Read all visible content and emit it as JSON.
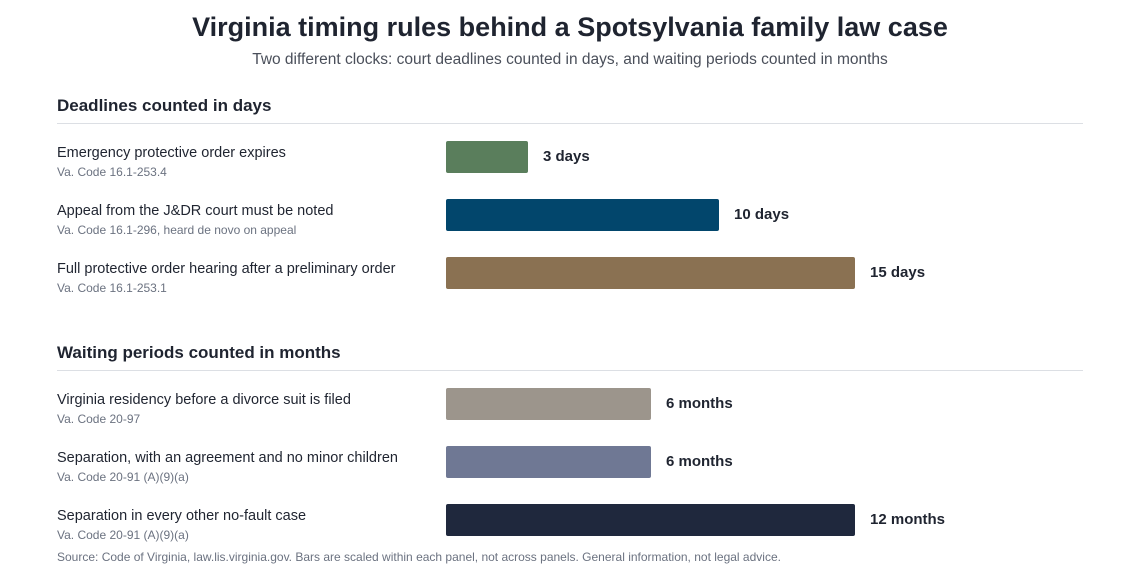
{
  "title": "Virginia timing rules behind a Spotsylvania family law case",
  "subtitle": "Two different clocks: court deadlines counted in days, and waiting periods counted in months",
  "source": "Source: Code of Virginia, law.lis.virginia.gov. Bars are scaled within each panel, not across panels. General information, not legal advice.",
  "chart_data": [
    {
      "type": "bar",
      "orientation": "horizontal",
      "title": "Deadlines counted in days",
      "unit": "days",
      "xlim": [
        0,
        15
      ],
      "grid": false,
      "legend": "none",
      "rows": [
        {
          "label": "Emergency protective order expires",
          "citation": "Va. Code 16.1-253.4",
          "value": 3,
          "value_label": "3 days",
          "color": "#5a7e5c"
        },
        {
          "label": "Appeal from the J&DR court must be noted",
          "citation": "Va. Code 16.1-296, heard de novo on appeal",
          "value": 10,
          "value_label": "10 days",
          "color": "#02466c"
        },
        {
          "label": "Full protective order hearing after a preliminary order",
          "citation": "Va. Code 16.1-253.1",
          "value": 15,
          "value_label": "15 days",
          "color": "#8a7152"
        }
      ]
    },
    {
      "type": "bar",
      "orientation": "horizontal",
      "title": "Waiting periods counted in months",
      "unit": "months",
      "xlim": [
        0,
        12
      ],
      "grid": false,
      "legend": "none",
      "rows": [
        {
          "label": "Virginia residency before a divorce suit is filed",
          "citation": "Va. Code 20-97",
          "value": 6,
          "value_label": "6 months",
          "color": "#9c958c"
        },
        {
          "label": "Separation, with an agreement and no minor children",
          "citation": "Va. Code 20-91 (A)(9)(a)",
          "value": 6,
          "value_label": "6 months",
          "color": "#6f7894"
        },
        {
          "label": "Separation in every other no-fault case",
          "citation": "Va. Code 20-91 (A)(9)(a)",
          "value": 12,
          "value_label": "12 months",
          "color": "#1f283d"
        }
      ]
    }
  ]
}
